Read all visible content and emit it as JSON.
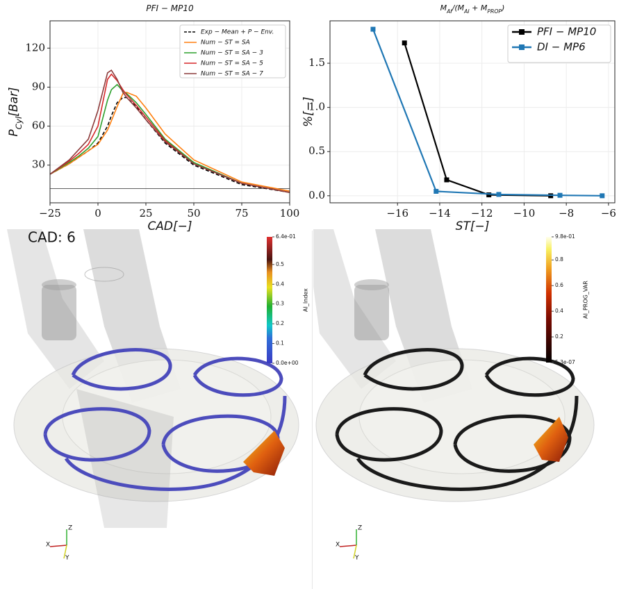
{
  "chart_data": [
    {
      "type": "line",
      "title": [
        "PFI − MP10"
      ],
      "ylabel": [
        "P",
        "Cyl",
        "[Bar]"
      ],
      "xlabel": "CAD[−]",
      "x": [
        -25,
        -15,
        -10,
        -5,
        0,
        5,
        7,
        10,
        13,
        15,
        20,
        25,
        35,
        50,
        75,
        100
      ],
      "series": [
        {
          "name": "Exp − Mean + P − Env.",
          "color": "#000000",
          "dash": true,
          "values": [
            23,
            31,
            36,
            41,
            47,
            60,
            68,
            78,
            82,
            82,
            75,
            65,
            47,
            30,
            15,
            9
          ]
        },
        {
          "color": "#000000",
          "values": [
            12,
            12,
            12,
            12,
            12,
            12,
            12,
            12,
            12,
            12,
            12,
            12,
            12,
            12,
            12,
            12
          ]
        },
        {
          "name": "Num − ST = SA",
          "color": "#ff7f0e",
          "values": [
            23,
            31,
            36,
            41,
            46,
            57,
            64,
            75,
            85,
            86,
            83,
            74,
            54,
            34,
            17,
            10
          ]
        },
        {
          "name": "Num − ST = SA − 3",
          "color": "#2ca02c",
          "values": [
            23,
            32,
            37,
            43,
            52,
            80,
            88,
            92,
            87,
            85,
            78,
            69,
            50,
            32,
            16,
            9
          ]
        },
        {
          "name": "Num − ST = SA − 5",
          "color": "#d62728",
          "values": [
            23,
            33,
            39,
            46,
            60,
            96,
            100,
            95,
            88,
            84,
            76,
            67,
            49,
            31,
            16,
            9
          ]
        },
        {
          "name": "Num − ST = SA − 7",
          "color": "#8c3a3a",
          "values": [
            23,
            34,
            42,
            50,
            72,
            101,
            103,
            96,
            86,
            82,
            74,
            65,
            48,
            31,
            16,
            9
          ]
        }
      ],
      "xlim": [
        -25,
        100
      ],
      "ylim": [
        1,
        141
      ],
      "xticks": [
        {
          "value": -25,
          "label": "−25"
        },
        0,
        25,
        50,
        75,
        100
      ],
      "yticks": [
        30,
        60,
        90,
        120
      ],
      "grid": true,
      "legend": "upper right"
    },
    {
      "type": "line",
      "title": [
        "M",
        "AI",
        "/(M",
        "AI",
        " + M",
        "PROP",
        ")"
      ],
      "ylabel": [
        "%[−]"
      ],
      "xlabel": "ST[−]",
      "series": [
        {
          "name": "PFI − MP10",
          "color": "#000000",
          "marker": "square",
          "x": [
            -15.67,
            -13.67,
            -11.67,
            -8.74
          ],
          "values": [
            1.73,
            0.18,
            0.01,
            0.0
          ]
        },
        {
          "name": "DI − MP6",
          "color": "#1f77b4",
          "marker": "square",
          "x": [
            -17.16,
            -14.17,
            -11.2,
            -8.3,
            -6.3
          ],
          "values": [
            1.885,
            0.05,
            0.015,
            0.005,
            0.0
          ]
        }
      ],
      "xlim": [
        -19.2,
        -5.7
      ],
      "ylim": [
        -0.08,
        1.98
      ],
      "xticks": [
        {
          "value": -16,
          "label": "−16"
        },
        {
          "value": -14,
          "label": "−14"
        },
        {
          "value": -12,
          "label": "−12"
        },
        {
          "value": -10,
          "label": "−10"
        },
        {
          "value": -8,
          "label": "−8"
        },
        {
          "value": -6,
          "label": "−6"
        }
      ],
      "yticks": [
        {
          "value": 0,
          "label": "0.0"
        },
        0.5,
        {
          "value": 1,
          "label": "1.0"
        },
        1.5
      ],
      "grid": true,
      "legend": "upper right"
    }
  ],
  "renders": [
    {
      "label": "CAD: 6",
      "colorbar": {
        "title": "AI_Index",
        "range": [
          0,
          0.64
        ],
        "ticks": [
          {
            "value": 0.64,
            "label": "6.4e-01"
          },
          0.5,
          0.4,
          0.3,
          0.2,
          0.1,
          {
            "value": 0,
            "label": "0.0e+00"
          }
        ]
      },
      "axes": [
        "Z",
        "X",
        "Y"
      ]
    },
    {
      "colorbar": {
        "title": "AI_PROG_VAR",
        "range": [
          5.3e-07,
          0.98
        ],
        "ticks": [
          {
            "value": 0.98,
            "label": "9.8e-01"
          },
          0.8,
          0.6,
          0.4,
          0.2,
          {
            "value": 5.3e-07,
            "label": "5.3e-07"
          }
        ]
      },
      "axes": [
        "Z",
        "X",
        "Y"
      ]
    }
  ]
}
